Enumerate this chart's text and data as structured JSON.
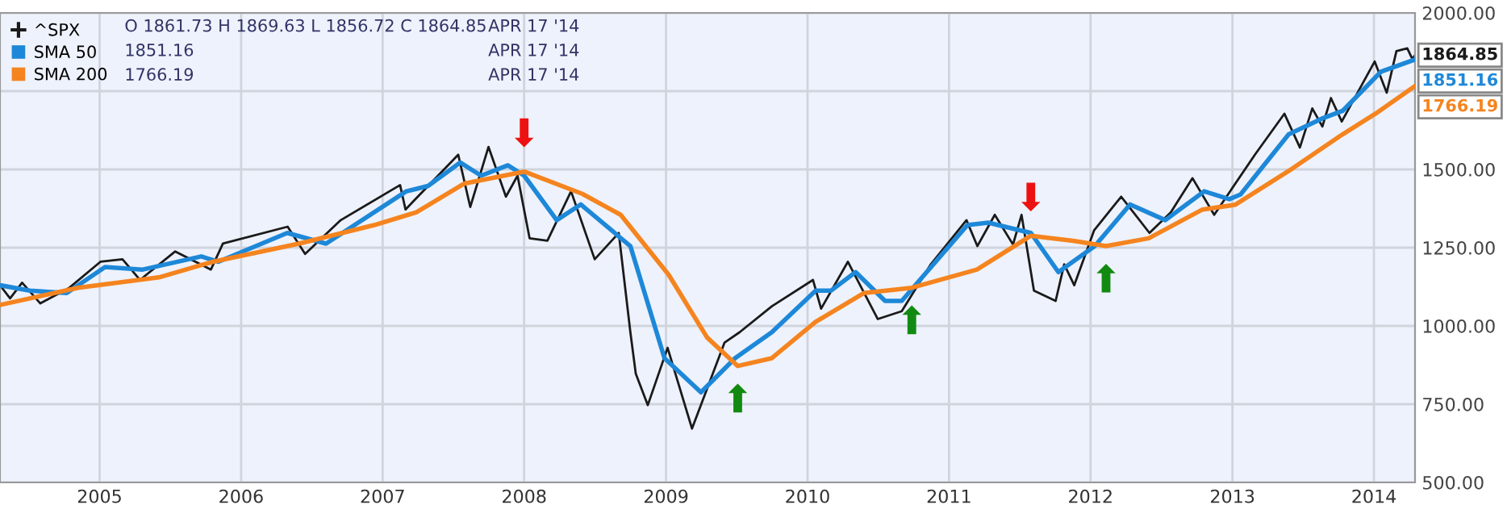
{
  "chart_data": {
    "type": "line",
    "xlim": [
      "2004-04-19",
      "2014-04-17"
    ],
    "ylim": [
      500,
      2000
    ],
    "xticks": [
      {
        "value": "2005",
        "label": "2005"
      },
      {
        "value": "2006",
        "label": "2006"
      },
      {
        "value": "2007",
        "label": "2007"
      },
      {
        "value": "2008",
        "label": "2008"
      },
      {
        "value": "2009",
        "label": "2009"
      },
      {
        "value": "2010",
        "label": "2010"
      },
      {
        "value": "2011",
        "label": "2011"
      },
      {
        "value": "2012",
        "label": "2012"
      },
      {
        "value": "2013",
        "label": "2013"
      },
      {
        "value": "2014",
        "label": "2014"
      }
    ],
    "yticks": [
      {
        "value": 500,
        "label": "500.00"
      },
      {
        "value": 750,
        "label": "750.00"
      },
      {
        "value": 1000,
        "label": "1000.00"
      },
      {
        "value": 1250,
        "label": "1250.00"
      },
      {
        "value": 1500,
        "label": "1500.00"
      },
      {
        "value": 1750,
        "label": null
      },
      {
        "value": 2000,
        "label": "2000.00"
      }
    ],
    "grid": true,
    "legend": "top left",
    "series": [
      {
        "name": "^SPX",
        "color": "#1a1a1a",
        "x": [
          "2004-04-19",
          "2004-05-15",
          "2004-06-15",
          "2004-08-01",
          "2004-10-15",
          "2005-01-03",
          "2005-03-01",
          "2005-04-15",
          "2005-07-15",
          "2005-10-15",
          "2005-11-15",
          "2006-05-01",
          "2006-06-15",
          "2006-09-15",
          "2007-02-15",
          "2007-03-01",
          "2007-07-15",
          "2007-08-15",
          "2007-10-01",
          "2007-11-15",
          "2007-12-15",
          "2008-01-15",
          "2008-03-01",
          "2008-05-01",
          "2008-07-01",
          "2008-09-01",
          "2008-10-01",
          "2008-10-15",
          "2008-11-15",
          "2009-01-05",
          "2009-03-09",
          "2009-06-01",
          "2009-07-10",
          "2009-10-01",
          "2010-01-15",
          "2010-02-05",
          "2010-04-15",
          "2010-07-01",
          "2010-09-01",
          "2010-11-15",
          "2011-02-15",
          "2011-03-15",
          "2011-04-29",
          "2011-06-15",
          "2011-07-07",
          "2011-08-08",
          "2011-10-03",
          "2011-10-25",
          "2011-11-20",
          "2012-01-10",
          "2012-03-20",
          "2012-06-01",
          "2012-07-26",
          "2012-09-20",
          "2012-11-15",
          "2013-02-28",
          "2013-05-15",
          "2013-06-24",
          "2013-07-26",
          "2013-08-21",
          "2013-09-12",
          "2013-10-10",
          "2014-01-03",
          "2014-02-03",
          "2014-02-28",
          "2014-03-28",
          "2014-04-10",
          "2014-04-17"
        ],
        "values": [
          1130,
          1088,
          1138,
          1072,
          1122,
          1205,
          1213,
          1147,
          1238,
          1180,
          1263,
          1317,
          1230,
          1338,
          1450,
          1372,
          1547,
          1380,
          1572,
          1413,
          1480,
          1280,
          1272,
          1430,
          1213,
          1297,
          980,
          847,
          747,
          930,
          672,
          947,
          980,
          1063,
          1147,
          1055,
          1205,
          1022,
          1047,
          1197,
          1338,
          1255,
          1355,
          1260,
          1355,
          1113,
          1080,
          1197,
          1130,
          1305,
          1413,
          1297,
          1363,
          1472,
          1355,
          1547,
          1678,
          1570,
          1695,
          1637,
          1728,
          1653,
          1845,
          1745,
          1878,
          1887,
          1853,
          1864.85
        ]
      },
      {
        "name": "SMA 50",
        "color": "#1e88d8",
        "x": [
          "2004-04-19",
          "2004-07-05",
          "2004-10-08",
          "2005-01-15",
          "2005-04-22",
          "2005-09-20",
          "2005-11-03",
          "2006-04-30",
          "2006-08-08",
          "2007-03-03",
          "2007-04-28",
          "2007-07-20",
          "2007-09-12",
          "2007-11-20",
          "2008-01-01",
          "2008-03-25",
          "2008-05-26",
          "2008-10-01",
          "2008-12-28",
          "2009-04-01",
          "2009-06-28",
          "2009-10-01",
          "2010-01-22",
          "2010-03-03",
          "2010-05-05",
          "2010-07-20",
          "2010-09-01",
          "2011-02-17",
          "2011-04-12",
          "2011-07-31",
          "2011-10-10",
          "2012-01-12",
          "2012-04-12",
          "2012-07-12",
          "2012-10-20",
          "2012-12-24",
          "2013-01-22",
          "2013-05-26",
          "2013-08-19",
          "2013-10-12",
          "2014-01-19",
          "2014-04-17"
        ],
        "values": [
          1130,
          1113,
          1105,
          1188,
          1180,
          1222,
          1205,
          1297,
          1263,
          1430,
          1447,
          1522,
          1480,
          1513,
          1480,
          1338,
          1388,
          1255,
          897,
          788,
          897,
          980,
          1113,
          1113,
          1172,
          1080,
          1080,
          1322,
          1330,
          1297,
          1172,
          1255,
          1388,
          1338,
          1430,
          1405,
          1420,
          1612,
          1662,
          1687,
          1812,
          1851.16
        ]
      },
      {
        "name": "SMA 200",
        "color": "#f5841f",
        "x": [
          "2004-04-19",
          "2004-11-06",
          "2005-06-03",
          "2005-10-20",
          "2006-05-30",
          "2006-12-10",
          "2007-03-29",
          "2007-07-31",
          "2008-01-01",
          "2008-05-30",
          "2008-09-06",
          "2009-01-08",
          "2009-04-17",
          "2009-07-05",
          "2009-10-01",
          "2010-01-22",
          "2010-05-26",
          "2010-09-27",
          "2011-03-14",
          "2011-07-31",
          "2011-11-17",
          "2012-02-10",
          "2012-05-30",
          "2012-10-16",
          "2013-01-08",
          "2013-05-26",
          "2013-10-12",
          "2014-01-05",
          "2014-04-17"
        ],
        "values": [
          1067,
          1122,
          1155,
          1205,
          1263,
          1322,
          1363,
          1455,
          1493,
          1422,
          1355,
          1163,
          963,
          872,
          897,
          1013,
          1105,
          1122,
          1180,
          1288,
          1272,
          1255,
          1280,
          1372,
          1387,
          1495,
          1612,
          1678,
          1766.19
        ]
      }
    ],
    "annotations": [
      "O 1861.73 H 1869.63 L 1856.72 C 1864.85",
      "1851.16",
      "1766.19",
      "APR 17 '14",
      "APR 17 '14",
      "APR 17 '14",
      {
        "text": "1864.85",
        "x": "2014-04-17",
        "y": 1864.85
      },
      {
        "text": "1851.16",
        "x": "2014-04-17",
        "y": 1851.16
      },
      {
        "text": "1766.19",
        "x": "2014-04-17",
        "y": 1766.19
      },
      {
        "text": "⬇",
        "x": "2008-01-01",
        "y": 1493
      },
      {
        "text": "⬇",
        "x": "2011-07-31",
        "y": 1288
      },
      {
        "text": "⬆",
        "x": "2009-07-05",
        "y": 872
      },
      {
        "text": "⬆",
        "x": "2010-09-27",
        "y": 1122
      },
      {
        "text": "⬆",
        "x": "2012-02-10",
        "y": 1255
      }
    ]
  }
}
